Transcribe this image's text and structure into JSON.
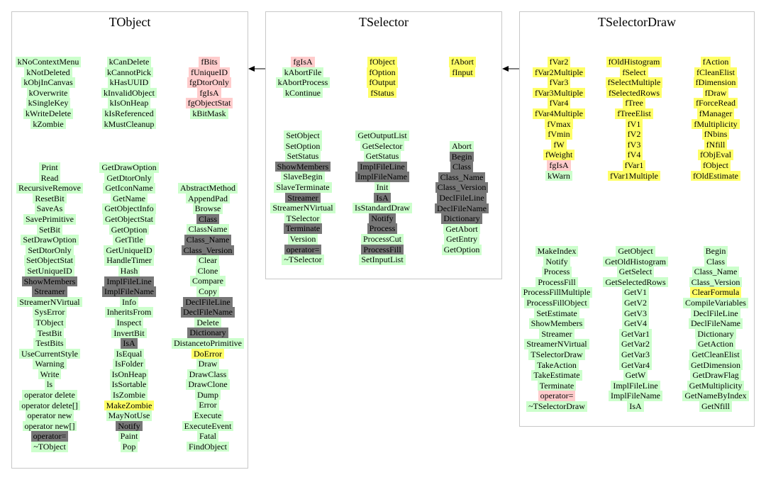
{
  "panels": {
    "tobject": {
      "title": "TObject",
      "groups": [
        [
          [
            [
              "kNoContextMenu",
              "g"
            ],
            [
              "kNotDeleted",
              "g"
            ],
            [
              "kObjInCanvas",
              "g"
            ],
            [
              "kOverwrite",
              "g"
            ],
            [
              "kSingleKey",
              "g"
            ],
            [
              "kWriteDelete",
              "g"
            ],
            [
              "kZombie",
              "g"
            ]
          ],
          [
            [
              "kCanDelete",
              "g"
            ],
            [
              "kCannotPick",
              "g"
            ],
            [
              "kHasUUID",
              "g"
            ],
            [
              "kInvalidObject",
              "g"
            ],
            [
              "kIsOnHeap",
              "g"
            ],
            [
              "kIsReferenced",
              "g"
            ],
            [
              "kMustCleanup",
              "g"
            ]
          ],
          [
            [
              "fBits",
              "p"
            ],
            [
              "fUniqueID",
              "p"
            ],
            [
              "fgDtorOnly",
              "p"
            ],
            [
              "fgIsA",
              "p"
            ],
            [
              "fgObjectStat",
              "p"
            ],
            [
              "kBitMask",
              "g"
            ]
          ]
        ],
        [
          [
            [
              "Print",
              "g"
            ],
            [
              "Read",
              "g"
            ],
            [
              "RecursiveRemove",
              "g"
            ],
            [
              "ResetBit",
              "g"
            ],
            [
              "SaveAs",
              "g"
            ],
            [
              "SavePrimitive",
              "g"
            ],
            [
              "SetBit",
              "g"
            ],
            [
              "SetDrawOption",
              "g"
            ],
            [
              "SetDtorOnly",
              "g"
            ],
            [
              "SetObjectStat",
              "g"
            ],
            [
              "SetUniqueID",
              "g"
            ],
            [
              "ShowMembers",
              "d"
            ],
            [
              "Streamer",
              "d"
            ],
            [
              "StreamerNVirtual",
              "g"
            ],
            [
              "SysError",
              "g"
            ],
            [
              "TObject",
              "g"
            ],
            [
              "TestBit",
              "g"
            ],
            [
              "TestBits",
              "g"
            ],
            [
              "UseCurrentStyle",
              "g"
            ],
            [
              "Warning",
              "g"
            ],
            [
              "Write",
              "g"
            ],
            [
              "ls",
              "g"
            ],
            [
              "operator delete",
              "g"
            ],
            [
              "operator delete[]",
              "g"
            ],
            [
              "operator new",
              "g"
            ],
            [
              "operator new[]",
              "g"
            ],
            [
              "operator=",
              "d"
            ],
            [
              "~TObject",
              "g"
            ]
          ],
          [
            [
              "GetDrawOption",
              "g"
            ],
            [
              "GetDtorOnly",
              "g"
            ],
            [
              "GetIconName",
              "g"
            ],
            [
              "GetName",
              "g"
            ],
            [
              "GetObjectInfo",
              "g"
            ],
            [
              "GetObjectStat",
              "g"
            ],
            [
              "GetOption",
              "g"
            ],
            [
              "GetTitle",
              "g"
            ],
            [
              "GetUniqueID",
              "g"
            ],
            [
              "HandleTimer",
              "g"
            ],
            [
              "Hash",
              "g"
            ],
            [
              "ImplFileLine",
              "d"
            ],
            [
              "ImplFileName",
              "d"
            ],
            [
              "Info",
              "g"
            ],
            [
              "InheritsFrom",
              "g"
            ],
            [
              "Inspect",
              "g"
            ],
            [
              "InvertBit",
              "g"
            ],
            [
              "IsA",
              "d"
            ],
            [
              "IsEqual",
              "g"
            ],
            [
              "IsFolder",
              "g"
            ],
            [
              "IsOnHeap",
              "g"
            ],
            [
              "IsSortable",
              "g"
            ],
            [
              "IsZombie",
              "g"
            ],
            [
              "MakeZombie",
              "y"
            ],
            [
              "MayNotUse",
              "g"
            ],
            [
              "Notify",
              "d"
            ],
            [
              "Paint",
              "g"
            ],
            [
              "Pop",
              "g"
            ]
          ],
          [
            [
              "AbstractMethod",
              "g"
            ],
            [
              "AppendPad",
              "g"
            ],
            [
              "Browse",
              "g"
            ],
            [
              "Class",
              "d"
            ],
            [
              "ClassName",
              "g"
            ],
            [
              "Class_Name",
              "d"
            ],
            [
              "Class_Version",
              "d"
            ],
            [
              "Clear",
              "g"
            ],
            [
              "Clone",
              "g"
            ],
            [
              "Compare",
              "g"
            ],
            [
              "Copy",
              "g"
            ],
            [
              "DeclFileLine",
              "d"
            ],
            [
              "DeclFileName",
              "d"
            ],
            [
              "Delete",
              "g"
            ],
            [
              "Dictionary",
              "d"
            ],
            [
              "DistancetoPrimitive",
              "g"
            ],
            [
              "DoError",
              "y"
            ],
            [
              "Draw",
              "g"
            ],
            [
              "DrawClass",
              "g"
            ],
            [
              "DrawClone",
              "g"
            ],
            [
              "Dump",
              "g"
            ],
            [
              "Error",
              "g"
            ],
            [
              "Execute",
              "g"
            ],
            [
              "ExecuteEvent",
              "g"
            ],
            [
              "Fatal",
              "g"
            ],
            [
              "FindObject",
              "g"
            ]
          ]
        ]
      ]
    },
    "tselector": {
      "title": "TSelector",
      "groups": [
        [
          [
            [
              "fgIsA",
              "p"
            ],
            [
              "kAbortFile",
              "g"
            ],
            [
              "kAbortProcess",
              "g"
            ],
            [
              "kContinue",
              "g"
            ]
          ],
          [
            [
              "fObject",
              "y"
            ],
            [
              "fOption",
              "y"
            ],
            [
              "fOutput",
              "y"
            ],
            [
              "fStatus",
              "y"
            ]
          ],
          [
            [
              "fAbort",
              "y"
            ],
            [
              "fInput",
              "y"
            ]
          ]
        ],
        [
          [
            [
              "SetObject",
              "g"
            ],
            [
              "SetOption",
              "g"
            ],
            [
              "SetStatus",
              "g"
            ],
            [
              "ShowMembers",
              "d"
            ],
            [
              "SlaveBegin",
              "g"
            ],
            [
              "SlaveTerminate",
              "g"
            ],
            [
              "Streamer",
              "d"
            ],
            [
              "StreamerNVirtual",
              "g"
            ],
            [
              "TSelector",
              "g"
            ],
            [
              "Terminate",
              "d"
            ],
            [
              "Version",
              "g"
            ],
            [
              "operator=",
              "d"
            ],
            [
              "~TSelector",
              "g"
            ]
          ],
          [
            [
              "GetOutputList",
              "g"
            ],
            [
              "GetSelector",
              "g"
            ],
            [
              "GetStatus",
              "g"
            ],
            [
              "ImplFileLine",
              "d"
            ],
            [
              "ImplFileName",
              "d"
            ],
            [
              "Init",
              "g"
            ],
            [
              "IsA",
              "d"
            ],
            [
              "IsStandardDraw",
              "g"
            ],
            [
              "Notify",
              "d"
            ],
            [
              "Process",
              "d"
            ],
            [
              "ProcessCut",
              "g"
            ],
            [
              "ProcessFill",
              "d"
            ],
            [
              "SetInputList",
              "g"
            ]
          ],
          [
            [
              "Abort",
              "g"
            ],
            [
              "Begin",
              "d"
            ],
            [
              "Class",
              "d"
            ],
            [
              "Class_Name",
              "d"
            ],
            [
              "Class_Version",
              "d"
            ],
            [
              "DeclFileLine",
              "d"
            ],
            [
              "DeclFileName",
              "d"
            ],
            [
              "Dictionary",
              "d"
            ],
            [
              "GetAbort",
              "g"
            ],
            [
              "GetEntry",
              "g"
            ],
            [
              "GetOption",
              "g"
            ]
          ]
        ]
      ]
    },
    "tselectordraw": {
      "title": "TSelectorDraw",
      "groups": [
        [
          [
            [
              "fVar2",
              "y"
            ],
            [
              "fVar2Multiple",
              "y"
            ],
            [
              "fVar3",
              "y"
            ],
            [
              "fVar3Multiple",
              "y"
            ],
            [
              "fVar4",
              "y"
            ],
            [
              "fVar4Multiple",
              "y"
            ],
            [
              "fVmax",
              "y"
            ],
            [
              "fVmin",
              "y"
            ],
            [
              "fW",
              "y"
            ],
            [
              "fWeight",
              "y"
            ],
            [
              "fgIsA",
              "p"
            ],
            [
              "kWarn",
              "g"
            ]
          ],
          [
            [
              "fOldHistogram",
              "y"
            ],
            [
              "fSelect",
              "y"
            ],
            [
              "fSelectMultiple",
              "y"
            ],
            [
              "fSelectedRows",
              "y"
            ],
            [
              "fTree",
              "y"
            ],
            [
              "fTreeElist",
              "y"
            ],
            [
              "fV1",
              "y"
            ],
            [
              "fV2",
              "y"
            ],
            [
              "fV3",
              "y"
            ],
            [
              "fV4",
              "y"
            ],
            [
              "fVar1",
              "y"
            ],
            [
              "fVar1Multiple",
              "y"
            ]
          ],
          [
            [
              "fAction",
              "y"
            ],
            [
              "fCleanElist",
              "y"
            ],
            [
              "fDimension",
              "y"
            ],
            [
              "fDraw",
              "y"
            ],
            [
              "fForceRead",
              "y"
            ],
            [
              "fManager",
              "y"
            ],
            [
              "fMultiplicity",
              "y"
            ],
            [
              "fNbins",
              "y"
            ],
            [
              "fNfill",
              "y"
            ],
            [
              "fObjEval",
              "y"
            ],
            [
              "fObject",
              "y"
            ],
            [
              "fOldEstimate",
              "y"
            ]
          ]
        ],
        [
          [
            [
              "MakeIndex",
              "g"
            ],
            [
              "Notify",
              "g"
            ],
            [
              "Process",
              "g"
            ],
            [
              "ProcessFill",
              "g"
            ],
            [
              "ProcessFillMultiple",
              "g"
            ],
            [
              "ProcessFillObject",
              "g"
            ],
            [
              "SetEstimate",
              "g"
            ],
            [
              "ShowMembers",
              "g"
            ],
            [
              "Streamer",
              "g"
            ],
            [
              "StreamerNVirtual",
              "g"
            ],
            [
              "TSelectorDraw",
              "g"
            ],
            [
              "TakeAction",
              "g"
            ],
            [
              "TakeEstimate",
              "g"
            ],
            [
              "Terminate",
              "g"
            ],
            [
              "operator=",
              "p"
            ],
            [
              "~TSelectorDraw",
              "g"
            ]
          ],
          [
            [
              "GetObject",
              "g"
            ],
            [
              "GetOldHistogram",
              "g"
            ],
            [
              "GetSelect",
              "g"
            ],
            [
              "GetSelectedRows",
              "g"
            ],
            [
              "GetV1",
              "g"
            ],
            [
              "GetV2",
              "g"
            ],
            [
              "GetV3",
              "g"
            ],
            [
              "GetV4",
              "g"
            ],
            [
              "GetVar1",
              "g"
            ],
            [
              "GetVar2",
              "g"
            ],
            [
              "GetVar3",
              "g"
            ],
            [
              "GetVar4",
              "g"
            ],
            [
              "GetW",
              "g"
            ],
            [
              "ImplFileLine",
              "g"
            ],
            [
              "ImplFileName",
              "g"
            ],
            [
              "IsA",
              "g"
            ]
          ],
          [
            [
              "Begin",
              "g"
            ],
            [
              "Class",
              "g"
            ],
            [
              "Class_Name",
              "g"
            ],
            [
              "Class_Version",
              "g"
            ],
            [
              "ClearFormula",
              "y"
            ],
            [
              "CompileVariables",
              "g"
            ],
            [
              "DeclFileLine",
              "g"
            ],
            [
              "DeclFileName",
              "g"
            ],
            [
              "Dictionary",
              "g"
            ],
            [
              "GetAction",
              "g"
            ],
            [
              "GetCleanElist",
              "g"
            ],
            [
              "GetDimension",
              "g"
            ],
            [
              "GetDrawFlag",
              "g"
            ],
            [
              "GetMultiplicity",
              "g"
            ],
            [
              "GetNameByIndex",
              "g"
            ],
            [
              "GetNfill",
              "g"
            ]
          ]
        ]
      ]
    }
  }
}
